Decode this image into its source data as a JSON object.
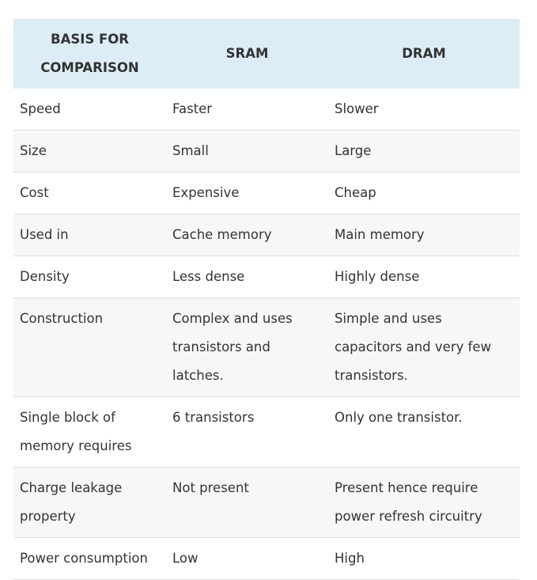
{
  "table": {
    "headers": [
      "BASIS FOR COMPARISON",
      "SRAM",
      "DRAM"
    ],
    "rows": [
      [
        "Speed",
        "Faster",
        "Slower"
      ],
      [
        "Size",
        "Small",
        "Large"
      ],
      [
        "Cost",
        "Expensive",
        "Cheap"
      ],
      [
        "Used in",
        "Cache memory",
        "Main memory"
      ],
      [
        "Density",
        "Less dense",
        "Highly dense"
      ],
      [
        "Construction",
        "Complex and uses transistors and latches.",
        "Simple and uses capacitors and very few transistors."
      ],
      [
        "Single block of memory requires",
        "6 transistors",
        "Only one transistor."
      ],
      [
        "Charge leakage property",
        "Not present",
        "Present hence require power refresh circuitry"
      ],
      [
        "Power consumption",
        "Low",
        "High"
      ]
    ]
  },
  "colors": {
    "header_bg": "#dcedf5",
    "stripe_bg": "#f7f7f7",
    "border": "#dddddd",
    "text": "#333333"
  }
}
